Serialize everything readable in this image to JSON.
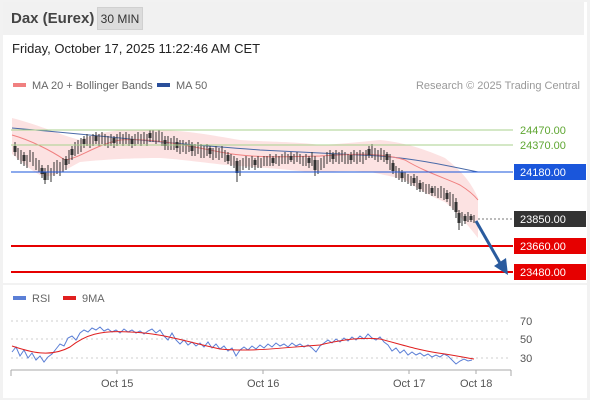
{
  "header": {
    "instrument": "Dax (Eurex)",
    "interval": "30 MIN"
  },
  "datetime": "Friday, October 17, 2025 11:22:46 AM CET",
  "legend": {
    "ma20": {
      "label": "MA 20 + Bollinger Bands",
      "color": "#f08080"
    },
    "ma50": {
      "label": "MA 50",
      "color": "#2a4f9a"
    }
  },
  "credit": "Research © 2025 Trading Central",
  "rsi_legend": {
    "rsi": {
      "label": "RSI",
      "color": "#5b7fd6"
    },
    "ma9": {
      "label": "9MA",
      "color": "#e02020"
    }
  },
  "chart_data": {
    "type": "candlestick",
    "price_levels": [
      {
        "value": "24470.00",
        "kind": "resistance",
        "color": "#9ccc70"
      },
      {
        "value": "24370.00",
        "kind": "resistance",
        "color": "#9ccc70"
      },
      {
        "value": "24180.00",
        "kind": "pivot",
        "color": "#1a56db"
      },
      {
        "value": "23850.00",
        "kind": "last",
        "color": "#333333"
      },
      {
        "value": "23660.00",
        "kind": "support",
        "color": "#e60000"
      },
      {
        "value": "23480.00",
        "kind": "support",
        "color": "#e60000"
      }
    ],
    "x_ticks": [
      "Oct 15",
      "Oct 16",
      "Oct 17",
      "Oct 18"
    ],
    "rsi_ticks": [
      "70",
      "50",
      "30"
    ],
    "forecast": "down"
  }
}
